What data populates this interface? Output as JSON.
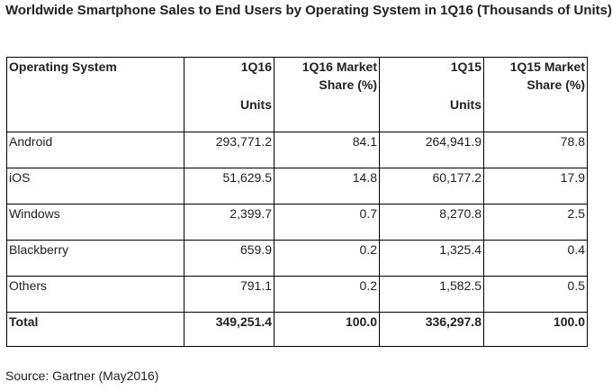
{
  "title": "Worldwide Smartphone Sales to End Users by Operating System in 1Q16 (Thousands of Units)",
  "table": {
    "header": {
      "os": "Operating System",
      "q16_units_line1": "1Q16",
      "q16_units_line2": "Units",
      "q16_share": "1Q16 Market Share (%)",
      "q15_units_line1": "1Q15",
      "q15_units_line2": "Units",
      "q15_share": "1Q15 Market Share (%)"
    },
    "rows": [
      {
        "os": "Android",
        "q16_units": "293,771.2",
        "q16_share": "84.1",
        "q15_units": "264,941.9",
        "q15_share": "78.8"
      },
      {
        "os": "iOS",
        "q16_units": "51,629.5",
        "q16_share": "14.8",
        "q15_units": "60,177.2",
        "q15_share": "17.9"
      },
      {
        "os": "Windows",
        "q16_units": "2,399.7",
        "q16_share": "0.7",
        "q15_units": "8,270.8",
        "q15_share": "2.5"
      },
      {
        "os": "Blackberry",
        "q16_units": "659.9",
        "q16_share": "0.2",
        "q15_units": "1,325.4",
        "q15_share": "0.4"
      },
      {
        "os": "Others",
        "q16_units": "791.1",
        "q16_share": "0.2",
        "q15_units": "1,582.5",
        "q15_share": "0.5"
      }
    ],
    "total": {
      "os": "Total",
      "q16_units": "349,251.4",
      "q16_share": "100.0",
      "q15_units": "336,297.8",
      "q15_share": "100.0"
    }
  },
  "source": "Source: Gartner (May2016)"
}
